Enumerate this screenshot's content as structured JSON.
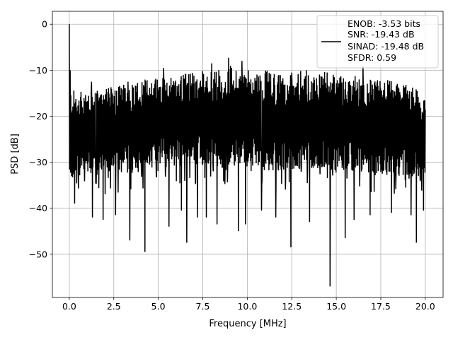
{
  "chart_data": {
    "type": "line",
    "title": "",
    "xlabel": "Frequency [MHz]",
    "ylabel": "PSD [dB]",
    "xlim": [
      -0.95,
      21.0
    ],
    "ylim": [
      -59.4,
      2.8
    ],
    "xticks": [
      0.0,
      2.5,
      5.0,
      7.5,
      10.0,
      12.5,
      15.0,
      17.5,
      20.0
    ],
    "xtick_labels": [
      "0.0",
      "2.5",
      "5.0",
      "7.5",
      "10.0",
      "12.5",
      "15.0",
      "17.5",
      "20.0"
    ],
    "yticks": [
      0,
      -10,
      -20,
      -30,
      -40,
      -50
    ],
    "ytick_labels": [
      "0",
      "−10",
      "−20",
      "−30",
      "−40",
      "−50"
    ],
    "grid": true,
    "legend_placement": "upper right",
    "legend_lines": [
      "ENOB: -3.53 bits",
      "SNR: -19.43 dB",
      "SINAD: -19.48 dB",
      "SFDR: 0.59"
    ],
    "series": [
      {
        "color": "#000000",
        "noise_band": {
          "x": [
            0.0,
            1.0,
            2.0,
            3.0,
            4.0,
            5.0,
            6.0,
            7.0,
            8.0,
            9.0,
            10.0,
            11.0,
            12.0,
            13.0,
            14.0,
            15.0,
            16.0,
            17.0,
            18.0,
            19.0,
            20.0
          ],
          "hi": [
            -14,
            -15,
            -14,
            -13,
            -12,
            -11,
            -11,
            -10,
            -10,
            -9,
            -10,
            -10,
            -11,
            -10,
            -10,
            -11,
            -11,
            -12,
            -12,
            -13,
            -15
          ],
          "lo": [
            -34,
            -33,
            -33,
            -33,
            -32,
            -31,
            -31,
            -31,
            -31,
            -31,
            -31,
            -32,
            -32,
            -32,
            -32,
            -32,
            -32,
            -33,
            -33,
            -33,
            -34
          ]
        },
        "peaks": [
          [
            0.0,
            0.0
          ],
          [
            0.05,
            -10.0
          ],
          [
            1.25,
            -12.5
          ],
          [
            3.3,
            -12.5
          ],
          [
            5.3,
            -9.5
          ],
          [
            8.0,
            -8.5
          ],
          [
            8.95,
            -7.3
          ],
          [
            9.7,
            -8.0
          ],
          [
            12.5,
            -10.5
          ],
          [
            16.5,
            -9.0
          ]
        ],
        "dips": [
          [
            0.3,
            -39.0
          ],
          [
            1.3,
            -42.0
          ],
          [
            1.9,
            -42.5
          ],
          [
            2.6,
            -41.5
          ],
          [
            3.4,
            -47.0
          ],
          [
            4.25,
            -49.5
          ],
          [
            5.6,
            -44.0
          ],
          [
            6.3,
            -40.5
          ],
          [
            6.6,
            -47.5
          ],
          [
            7.2,
            -42.0
          ],
          [
            7.7,
            -42.0
          ],
          [
            8.3,
            -43.5
          ],
          [
            9.5,
            -45.0
          ],
          [
            9.9,
            -43.5
          ],
          [
            10.8,
            -40.5
          ],
          [
            11.6,
            -42.0
          ],
          [
            12.45,
            -48.5
          ],
          [
            13.5,
            -43.0
          ],
          [
            14.65,
            -57.0
          ],
          [
            15.5,
            -46.5
          ],
          [
            16.0,
            -42.5
          ],
          [
            16.9,
            -41.5
          ],
          [
            18.1,
            -41.0
          ],
          [
            19.2,
            -41.5
          ],
          [
            19.5,
            -47.5
          ],
          [
            19.9,
            -40.5
          ]
        ]
      }
    ]
  }
}
